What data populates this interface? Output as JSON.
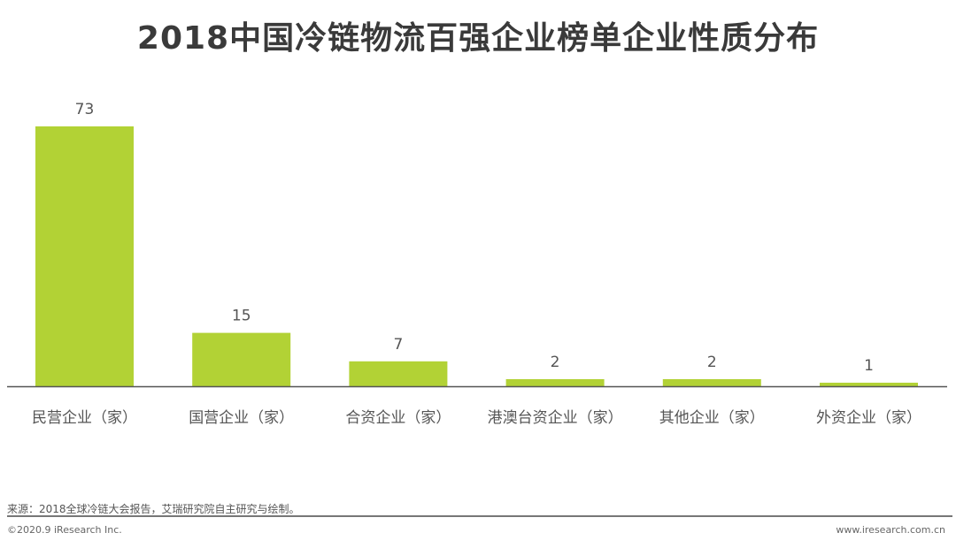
{
  "chart_data": {
    "type": "bar",
    "title": "2018中国冷链物流百强企业榜单企业性质分布",
    "categories": [
      "民营企业（家）",
      "国营企业（家）",
      "合资企业（家）",
      "港澳台资企业（家）",
      "其他企业（家）",
      "外资企业（家）"
    ],
    "values": [
      73,
      15,
      7,
      2,
      2,
      1
    ],
    "xlabel": "",
    "ylabel": "",
    "ylim": [
      0,
      73
    ],
    "grid": false,
    "colors": {
      "bar": "#b2d235",
      "axis": "#555555",
      "label": "#555555"
    }
  },
  "footer": {
    "source": "来源：2018全球冷链大会报告，艾瑞研究院自主研究与绘制。",
    "copyright": "©2020.9 iResearch Inc.",
    "website": "www.iresearch.com.cn"
  }
}
